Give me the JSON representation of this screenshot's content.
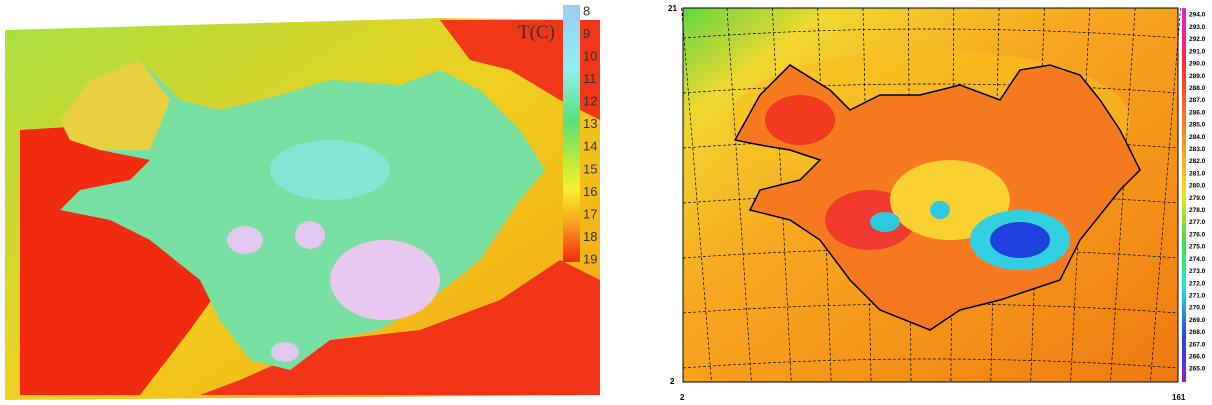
{
  "left_map": {
    "legend_title": "T(C)",
    "legend_labels": [
      "8",
      "9",
      "10",
      "11",
      "12",
      "13",
      "14",
      "15",
      "16",
      "17",
      "18",
      "19"
    ]
  },
  "right_map": {
    "y_axis_labels": [
      "21",
      "2"
    ],
    "x_axis_labels": [
      "2",
      "161"
    ],
    "legend_labels": [
      "294.0",
      "293.0",
      "292.0",
      "291.0",
      "290.0",
      "289.0",
      "288.0",
      "287.0",
      "286.0",
      "285.0",
      "284.0",
      "283.0",
      "282.0",
      "281.0",
      "280.0",
      "279.0",
      "278.0",
      "277.0",
      "276.0",
      "275.0",
      "274.0",
      "273.0",
      "272.0",
      "271.0",
      "270.0",
      "269.0",
      "268.0",
      "267.0",
      "266.0",
      "265.0"
    ]
  }
}
